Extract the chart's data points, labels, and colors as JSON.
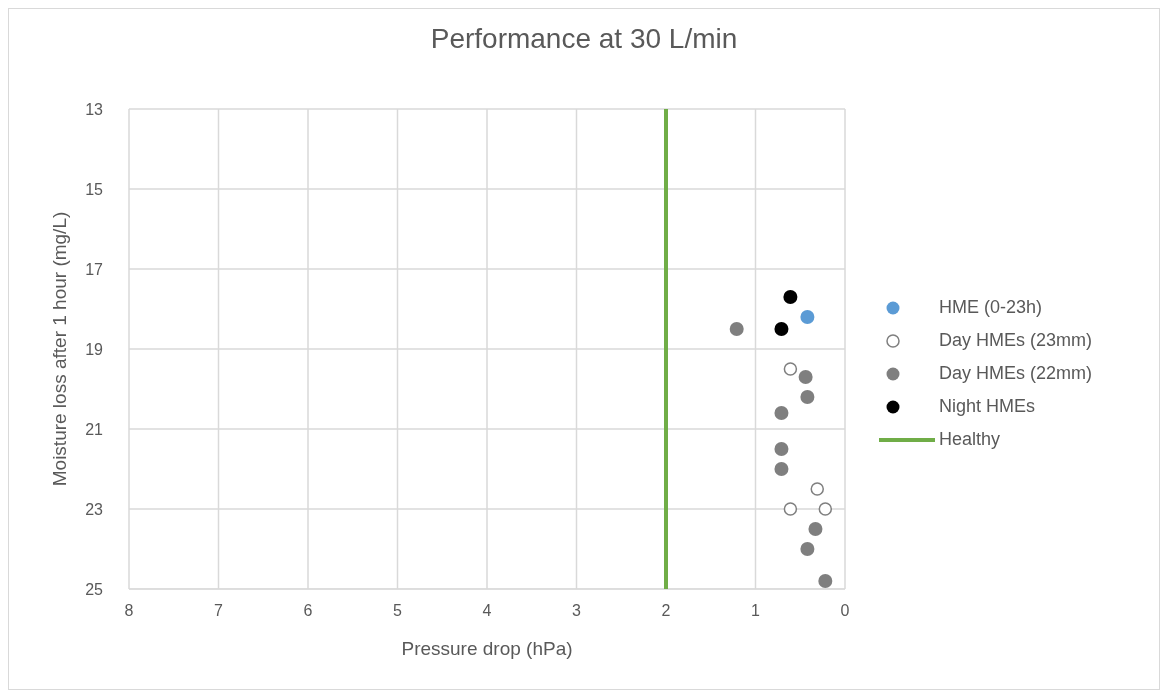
{
  "chart_data": {
    "type": "scatter",
    "title": "Performance at 30 L/min",
    "xlabel": "Pressure drop (hPa)",
    "ylabel": "Moisture loss after 1 hour (mg/L)",
    "xlim": [
      8,
      0
    ],
    "xticks": [
      8,
      7,
      6,
      5,
      4,
      3,
      2,
      1,
      0
    ],
    "ylim": [
      25,
      13
    ],
    "yticks": [
      25,
      23,
      21,
      19,
      17,
      15,
      13
    ],
    "grid": true,
    "legend": "right",
    "marker": "circle",
    "series": [
      {
        "name": "HME (0-23h)",
        "color": "#5b9bd5",
        "x": [
          0.42
        ],
        "values": [
          18.2
        ]
      },
      {
        "name": "Day HMEs (23mm)",
        "color": "#7f7f7f",
        "marker": "open-circle",
        "x": [
          0.61,
          0.31,
          0.61,
          0.22
        ],
        "values": [
          19.5,
          22.5,
          23.0,
          23.0
        ]
      },
      {
        "name": "Day HMEs (22mm)",
        "color": "#7f7f7f",
        "x": [
          1.21,
          0.44,
          0.42,
          0.71,
          0.71,
          0.71,
          0.33,
          0.42,
          0.22
        ],
        "values": [
          18.5,
          19.7,
          20.2,
          20.6,
          21.5,
          22.0,
          23.5,
          24.0,
          24.8
        ]
      },
      {
        "name": "Night HMEs",
        "color": "#000000",
        "x": [
          0.61,
          0.71
        ],
        "values": [
          17.7,
          18.5
        ]
      },
      {
        "name": "Healthy",
        "type": "line",
        "color": "#70ad47",
        "marker": "none",
        "x": [
          2,
          2
        ],
        "values": [
          13,
          25
        ]
      }
    ]
  }
}
